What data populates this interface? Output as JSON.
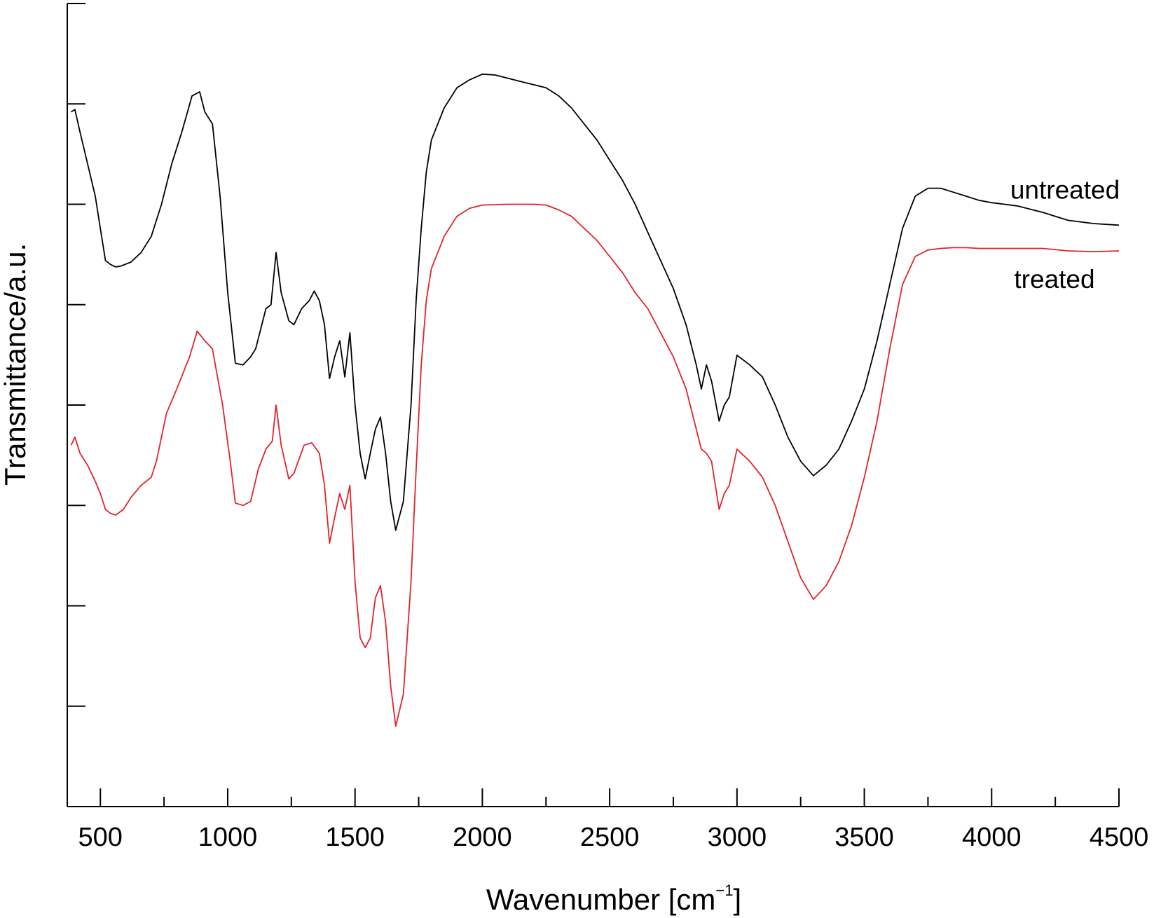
{
  "chart_data": {
    "type": "line",
    "title": "",
    "xlabel": "Wavenumber [cm",
    "xlabel_sup": "−1",
    "xlabel_close": "]",
    "ylabel": "Transmittance/a.u.",
    "xlim": [
      370,
      4500
    ],
    "ylim": [
      0,
      100
    ],
    "x_ticks": [
      500,
      1000,
      1500,
      2000,
      2500,
      3000,
      3500,
      4000,
      4500
    ],
    "x_tick_labels": [
      "500",
      "1000",
      "1500",
      "2000",
      "2500",
      "3000",
      "3500",
      "4000",
      "4500"
    ],
    "x_minor_ticks": [
      750,
      1250,
      1750,
      2250,
      2750,
      3250,
      3750,
      4250
    ],
    "y_ticks": [
      12.5,
      25,
      37.5,
      50,
      62.5,
      75,
      87.5,
      100
    ],
    "y_tick_labels_shown": false,
    "grid": false,
    "series": [
      {
        "name": "untreated",
        "color": "#000000",
        "points": [
          [
            385,
            86.5
          ],
          [
            400,
            86.8
          ],
          [
            420,
            84
          ],
          [
            450,
            80
          ],
          [
            480,
            76
          ],
          [
            500,
            72
          ],
          [
            520,
            68
          ],
          [
            540,
            67.5
          ],
          [
            560,
            67.2
          ],
          [
            580,
            67.3
          ],
          [
            620,
            67.8
          ],
          [
            660,
            69
          ],
          [
            700,
            71
          ],
          [
            740,
            75
          ],
          [
            780,
            80
          ],
          [
            820,
            84
          ],
          [
            860,
            88.5
          ],
          [
            890,
            89
          ],
          [
            910,
            86.5
          ],
          [
            940,
            85
          ],
          [
            970,
            76
          ],
          [
            1000,
            64
          ],
          [
            1030,
            55.2
          ],
          [
            1060,
            55
          ],
          [
            1090,
            56
          ],
          [
            1110,
            57
          ],
          [
            1150,
            62
          ],
          [
            1170,
            62.5
          ],
          [
            1190,
            69
          ],
          [
            1210,
            64
          ],
          [
            1240,
            60.5
          ],
          [
            1260,
            60
          ],
          [
            1290,
            62
          ],
          [
            1320,
            63
          ],
          [
            1340,
            64.2
          ],
          [
            1360,
            63
          ],
          [
            1380,
            60
          ],
          [
            1400,
            53.3
          ],
          [
            1420,
            56
          ],
          [
            1440,
            58
          ],
          [
            1460,
            53.5
          ],
          [
            1480,
            59
          ],
          [
            1500,
            50
          ],
          [
            1520,
            44
          ],
          [
            1540,
            40.8
          ],
          [
            1560,
            44
          ],
          [
            1580,
            47
          ],
          [
            1600,
            48.5
          ],
          [
            1620,
            44
          ],
          [
            1640,
            38
          ],
          [
            1660,
            34.4
          ],
          [
            1690,
            38
          ],
          [
            1720,
            50
          ],
          [
            1740,
            63
          ],
          [
            1760,
            72
          ],
          [
            1780,
            79
          ],
          [
            1800,
            83
          ],
          [
            1850,
            87
          ],
          [
            1900,
            89.5
          ],
          [
            1950,
            90.5
          ],
          [
            2000,
            91.2
          ],
          [
            2050,
            91.1
          ],
          [
            2100,
            90.7
          ],
          [
            2150,
            90.3
          ],
          [
            2200,
            89.9
          ],
          [
            2250,
            89.5
          ],
          [
            2300,
            88.5
          ],
          [
            2350,
            87
          ],
          [
            2400,
            85
          ],
          [
            2450,
            83
          ],
          [
            2500,
            80.5
          ],
          [
            2550,
            78
          ],
          [
            2600,
            75
          ],
          [
            2650,
            71.5
          ],
          [
            2700,
            68
          ],
          [
            2750,
            64.5
          ],
          [
            2800,
            60
          ],
          [
            2840,
            55
          ],
          [
            2860,
            52
          ],
          [
            2880,
            55
          ],
          [
            2900,
            53
          ],
          [
            2930,
            48
          ],
          [
            2950,
            50
          ],
          [
            2970,
            51
          ],
          [
            3000,
            56.2
          ],
          [
            3050,
            55
          ],
          [
            3100,
            53.5
          ],
          [
            3150,
            50
          ],
          [
            3200,
            46
          ],
          [
            3250,
            43
          ],
          [
            3300,
            41.2
          ],
          [
            3350,
            42.5
          ],
          [
            3400,
            44.5
          ],
          [
            3450,
            48
          ],
          [
            3500,
            52
          ],
          [
            3550,
            58
          ],
          [
            3600,
            65
          ],
          [
            3650,
            72
          ],
          [
            3700,
            76
          ],
          [
            3750,
            77
          ],
          [
            3800,
            77
          ],
          [
            3850,
            76.5
          ],
          [
            3900,
            76
          ],
          [
            3950,
            75.5
          ],
          [
            4000,
            75.2
          ],
          [
            4050,
            75
          ],
          [
            4100,
            74.8
          ],
          [
            4200,
            74
          ],
          [
            4300,
            73
          ],
          [
            4400,
            72.6
          ],
          [
            4500,
            72.4
          ]
        ]
      },
      {
        "name": "treated",
        "color": "#e3232b",
        "points": [
          [
            385,
            45
          ],
          [
            400,
            46
          ],
          [
            420,
            44
          ],
          [
            450,
            42.5
          ],
          [
            480,
            40.5
          ],
          [
            500,
            39
          ],
          [
            520,
            37
          ],
          [
            540,
            36.5
          ],
          [
            560,
            36.3
          ],
          [
            590,
            37
          ],
          [
            620,
            38.5
          ],
          [
            660,
            40
          ],
          [
            700,
            41
          ],
          [
            720,
            43
          ],
          [
            760,
            49
          ],
          [
            800,
            52
          ],
          [
            850,
            56
          ],
          [
            880,
            59.2
          ],
          [
            910,
            58
          ],
          [
            940,
            57
          ],
          [
            980,
            50
          ],
          [
            1010,
            43
          ],
          [
            1030,
            37.8
          ],
          [
            1060,
            37.5
          ],
          [
            1090,
            38
          ],
          [
            1120,
            42
          ],
          [
            1150,
            44.5
          ],
          [
            1175,
            45.5
          ],
          [
            1190,
            50
          ],
          [
            1210,
            45
          ],
          [
            1240,
            40.8
          ],
          [
            1260,
            41.5
          ],
          [
            1300,
            45
          ],
          [
            1330,
            45.3
          ],
          [
            1360,
            44
          ],
          [
            1380,
            40
          ],
          [
            1400,
            32.8
          ],
          [
            1420,
            36
          ],
          [
            1440,
            39
          ],
          [
            1460,
            37
          ],
          [
            1480,
            40
          ],
          [
            1500,
            28
          ],
          [
            1520,
            21
          ],
          [
            1540,
            19.8
          ],
          [
            1560,
            21
          ],
          [
            1580,
            26
          ],
          [
            1600,
            27.5
          ],
          [
            1620,
            23
          ],
          [
            1640,
            15
          ],
          [
            1660,
            10
          ],
          [
            1690,
            14
          ],
          [
            1720,
            28
          ],
          [
            1740,
            42
          ],
          [
            1760,
            55
          ],
          [
            1780,
            63
          ],
          [
            1800,
            67
          ],
          [
            1850,
            71
          ],
          [
            1900,
            73.5
          ],
          [
            1950,
            74.5
          ],
          [
            2000,
            74.9
          ],
          [
            2100,
            75
          ],
          [
            2200,
            75
          ],
          [
            2250,
            74.9
          ],
          [
            2300,
            74.3
          ],
          [
            2350,
            73.5
          ],
          [
            2400,
            72
          ],
          [
            2450,
            70.5
          ],
          [
            2500,
            68.5
          ],
          [
            2550,
            66.5
          ],
          [
            2600,
            64
          ],
          [
            2650,
            62
          ],
          [
            2700,
            59
          ],
          [
            2750,
            56
          ],
          [
            2800,
            52
          ],
          [
            2840,
            47
          ],
          [
            2860,
            44.5
          ],
          [
            2880,
            44
          ],
          [
            2900,
            43
          ],
          [
            2930,
            37
          ],
          [
            2950,
            39
          ],
          [
            2970,
            40
          ],
          [
            3000,
            44.5
          ],
          [
            3050,
            43
          ],
          [
            3100,
            41
          ],
          [
            3150,
            37.5
          ],
          [
            3200,
            33
          ],
          [
            3250,
            28.5
          ],
          [
            3300,
            25.8
          ],
          [
            3350,
            27.5
          ],
          [
            3400,
            30.5
          ],
          [
            3450,
            35
          ],
          [
            3500,
            41
          ],
          [
            3550,
            48
          ],
          [
            3600,
            57
          ],
          [
            3650,
            65
          ],
          [
            3700,
            68.5
          ],
          [
            3750,
            69.3
          ],
          [
            3800,
            69.5
          ],
          [
            3850,
            69.6
          ],
          [
            3900,
            69.6
          ],
          [
            3950,
            69.5
          ],
          [
            4000,
            69.5
          ],
          [
            4100,
            69.5
          ],
          [
            4200,
            69.5
          ],
          [
            4300,
            69.2
          ],
          [
            4400,
            69.1
          ],
          [
            4500,
            69.2
          ]
        ]
      }
    ]
  }
}
